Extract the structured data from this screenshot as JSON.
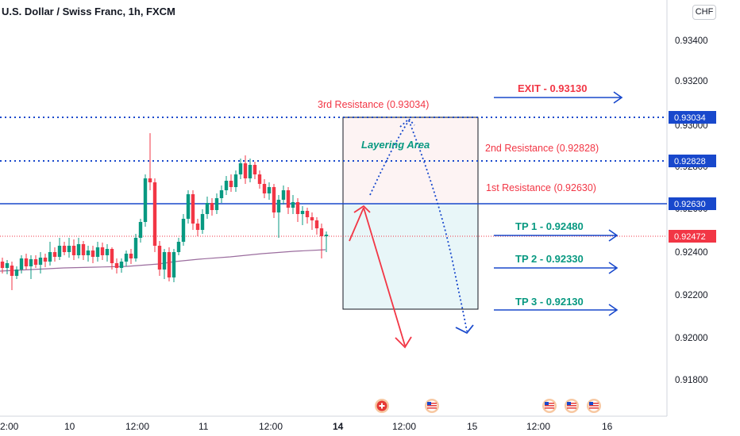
{
  "header": {
    "title": "U.S. Dollar / Swiss Franc, 1h, FXCM",
    "currency": "CHF"
  },
  "chart_data": {
    "type": "candlestick",
    "y_axis": {
      "ticks": [
        "0.93400",
        "0.93200",
        "0.93000",
        "0.92800",
        "0.92600",
        "0.92400",
        "0.92200",
        "0.92000",
        "0.91800"
      ],
      "range": [
        0.9164,
        0.9356
      ]
    },
    "x_axis": {
      "ticks": [
        "2:00",
        "10",
        "12:00",
        "11",
        "12:00",
        "14",
        "12:00",
        "15",
        "12:00",
        "16"
      ]
    },
    "price_labels": [
      {
        "value": "0.93034",
        "level": 0.93034,
        "color": "#1848cc"
      },
      {
        "value": "0.92828",
        "level": 0.92828,
        "color": "#1848cc"
      },
      {
        "value": "0.92630",
        "level": 0.9263,
        "color": "#1848cc"
      },
      {
        "value": "0.92472",
        "level": 0.92472,
        "color": "#f23645"
      }
    ],
    "levels": [
      {
        "name": "3rd Resistance (0.93034)",
        "value": 0.93034,
        "style": "dotted"
      },
      {
        "name": "2nd Resistance (0.92828)",
        "value": 0.92828,
        "style": "dotted"
      },
      {
        "name": "1st Resistance (0.92630)",
        "value": 0.9263,
        "style": "solid"
      }
    ],
    "targets": [
      {
        "label": "EXIT - 0.93130",
        "value": 0.9313,
        "color": "#f23645"
      },
      {
        "label": "TP 1 - 0.92480",
        "value": 0.9248,
        "color": "#089981"
      },
      {
        "label": "TP 2 - 0.92330",
        "value": 0.9233,
        "color": "#089981"
      },
      {
        "label": "TP 3 - 0.92130",
        "value": 0.9213,
        "color": "#089981"
      }
    ],
    "annotation": "Layering Area",
    "current_price": 0.92472,
    "colors": {
      "up": "#089981",
      "down": "#f23645",
      "moving_average": "#9b6d9e"
    }
  }
}
